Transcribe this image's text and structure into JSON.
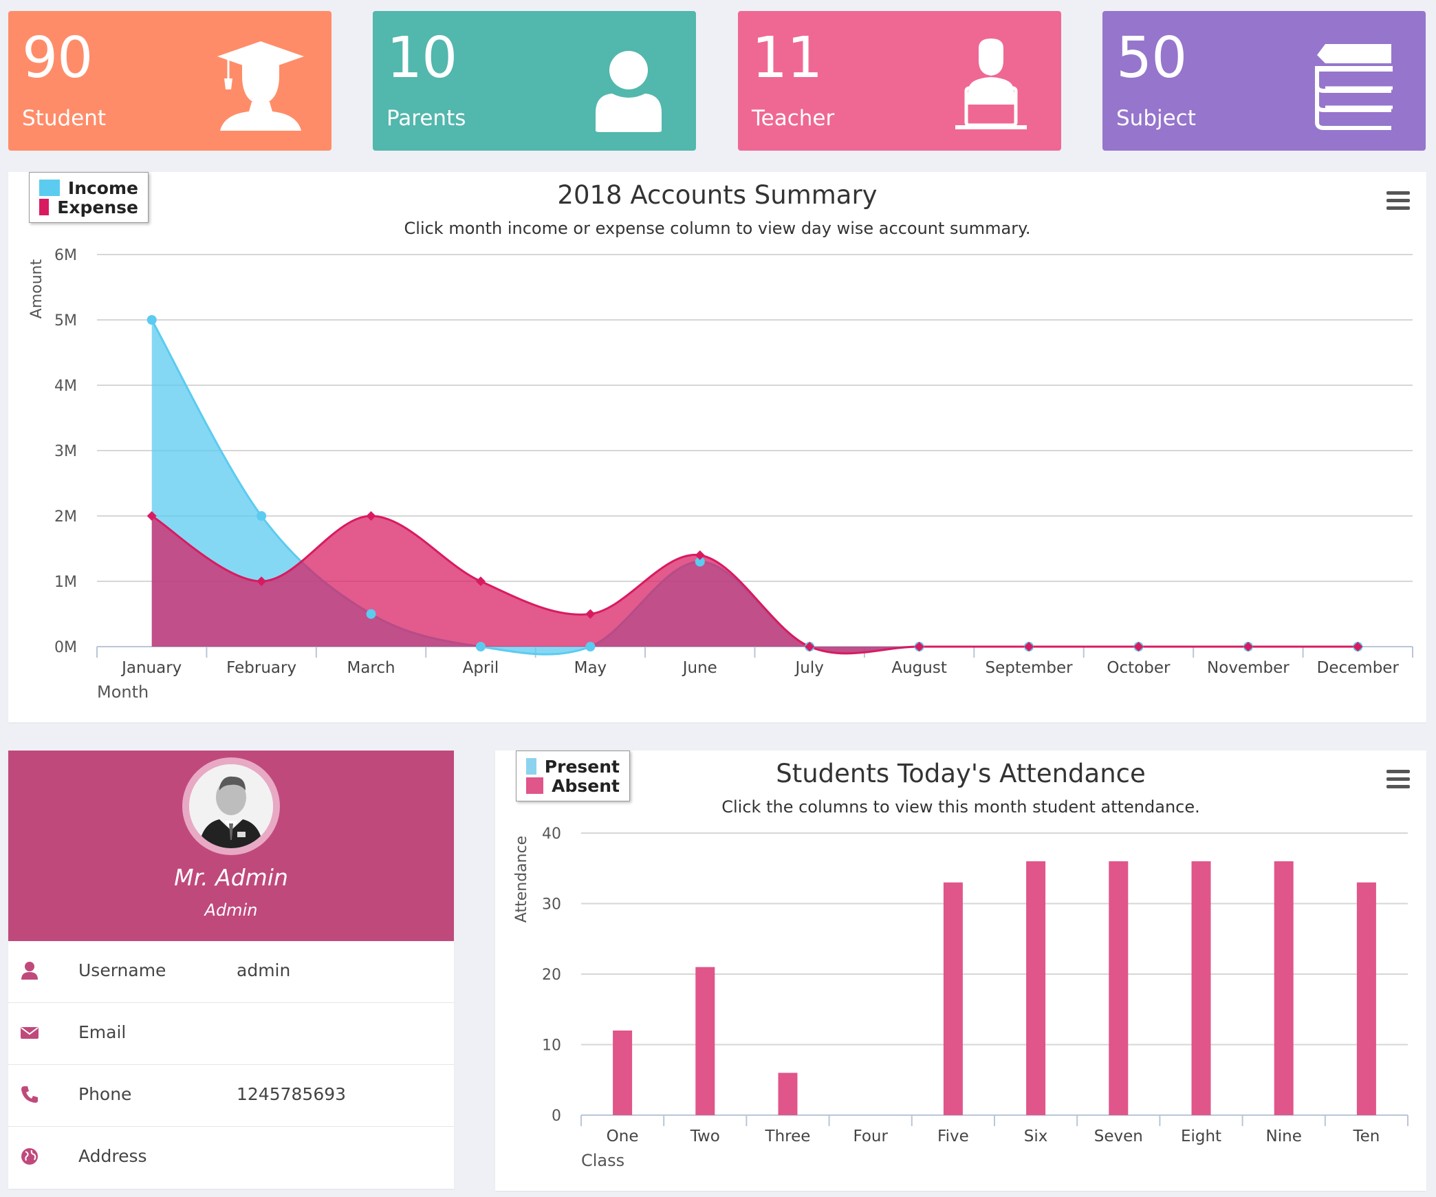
{
  "stats": [
    {
      "value": "90",
      "label": "Student",
      "color": "#ff8c69",
      "icon": "graduate-icon"
    },
    {
      "value": "10",
      "label": "Parents",
      "color": "#52b7ad",
      "icon": "user-icon"
    },
    {
      "value": "11",
      "label": "Teacher",
      "color": "#ef6893",
      "icon": "teacher-icon"
    },
    {
      "value": "50",
      "label": "Subject",
      "color": "#9675cc",
      "icon": "books-icon"
    }
  ],
  "accounts_chart": {
    "title": "2018 Accounts Summary",
    "subtitle": "Click month income or expense column to view day wise account summary.",
    "legend": [
      "Income",
      "Expense"
    ],
    "colors": {
      "income": "#5ccbf0",
      "expense": "#d81b60"
    }
  },
  "attendance_chart": {
    "title": "Students Today's Attendance",
    "subtitle": "Click the columns to view this month student attendance.",
    "legend": [
      "Present",
      "Absent"
    ],
    "colors": {
      "present": "#8cd3ef",
      "absent": "#e0558a"
    }
  },
  "chart_data": [
    {
      "type": "area",
      "title": "2018 Accounts Summary",
      "subtitle": "Click month income or expense column to view day wise account summary.",
      "xlabel": "Month",
      "ylabel": "Amount",
      "categories": [
        "January",
        "February",
        "March",
        "April",
        "May",
        "June",
        "July",
        "August",
        "September",
        "October",
        "November",
        "December"
      ],
      "yticks": [
        "0M",
        "1M",
        "2M",
        "3M",
        "4M",
        "5M",
        "6M"
      ],
      "ylim": [
        0,
        6000000
      ],
      "grid": true,
      "legend_position": "top-left",
      "series": [
        {
          "name": "Income",
          "values": [
            5000000,
            2000000,
            500000,
            0,
            0,
            1300000,
            0,
            0,
            0,
            0,
            0,
            0
          ]
        },
        {
          "name": "Expense",
          "values": [
            2000000,
            1000000,
            2000000,
            1000000,
            500000,
            1400000,
            0,
            0,
            0,
            0,
            0,
            0
          ]
        }
      ]
    },
    {
      "type": "bar",
      "title": "Students Today's Attendance",
      "subtitle": "Click the columns to view this month student attendance.",
      "xlabel": "Class",
      "ylabel": "Attendance",
      "categories": [
        "One",
        "Two",
        "Three",
        "Four",
        "Five",
        "Six",
        "Seven",
        "Eight",
        "Nine",
        "Ten"
      ],
      "yticks": [
        "0",
        "10",
        "20",
        "30",
        "40"
      ],
      "ylim": [
        0,
        40
      ],
      "grid": true,
      "legend_position": "top-left",
      "series": [
        {
          "name": "Present",
          "values": [
            0,
            0,
            0,
            0,
            0,
            0,
            0,
            0,
            0,
            0
          ]
        },
        {
          "name": "Absent",
          "values": [
            12,
            21,
            6,
            0,
            33,
            36,
            36,
            36,
            36,
            33
          ]
        }
      ]
    }
  ],
  "profile": {
    "name": "Mr. Admin",
    "role": "Admin",
    "rows": [
      {
        "key": "Username",
        "value": "admin",
        "icon": "user-icon"
      },
      {
        "key": "Email",
        "value": "",
        "icon": "envelope-icon"
      },
      {
        "key": "Phone",
        "value": "1245785693",
        "icon": "phone-icon"
      },
      {
        "key": "Address",
        "value": "",
        "icon": "globe-icon"
      }
    ],
    "accent": "#c0497c"
  }
}
